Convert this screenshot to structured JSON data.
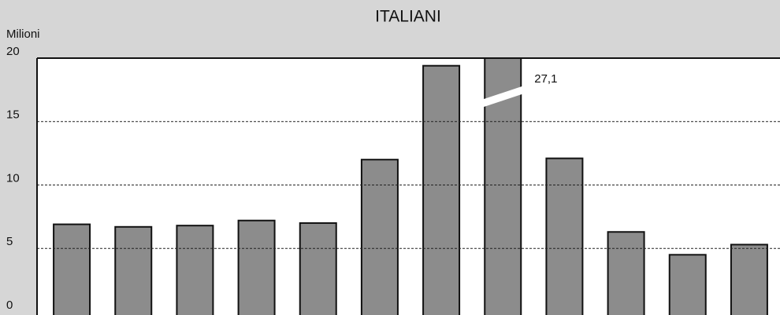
{
  "chart_data": {
    "type": "bar",
    "title": "ITALIANI",
    "y_label": "Milioni",
    "categories": [
      null,
      null,
      null,
      null,
      null,
      null,
      null,
      null,
      null,
      null,
      null,
      null
    ],
    "values": [
      6.9,
      6.7,
      6.8,
      7.2,
      7.0,
      12.0,
      19.4,
      27.1,
      12.1,
      6.3,
      4.5,
      5.3
    ],
    "value_labels": [
      null,
      null,
      null,
      null,
      null,
      null,
      null,
      "27,1",
      null,
      null,
      null,
      null
    ],
    "color": "#8c8c8c",
    "ylim": [
      0,
      20
    ],
    "yticks": [
      0,
      5,
      10,
      15,
      20
    ],
    "grid": true
  }
}
